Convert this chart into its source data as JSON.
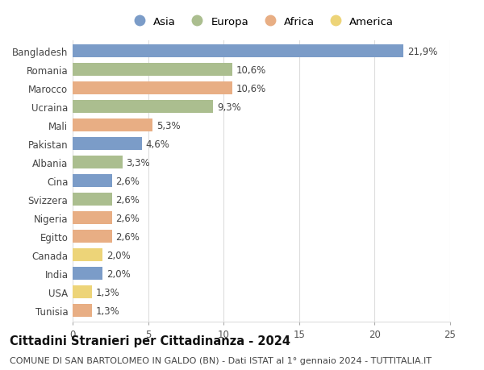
{
  "countries": [
    "Bangladesh",
    "Romania",
    "Marocco",
    "Ucraina",
    "Mali",
    "Pakistan",
    "Albania",
    "Cina",
    "Svizzera",
    "Nigeria",
    "Egitto",
    "Canada",
    "India",
    "USA",
    "Tunisia"
  ],
  "values": [
    21.9,
    10.6,
    10.6,
    9.3,
    5.3,
    4.6,
    3.3,
    2.6,
    2.6,
    2.6,
    2.6,
    2.0,
    2.0,
    1.3,
    1.3
  ],
  "labels": [
    "21,9%",
    "10,6%",
    "10,6%",
    "9,3%",
    "5,3%",
    "4,6%",
    "3,3%",
    "2,6%",
    "2,6%",
    "2,6%",
    "2,6%",
    "2,0%",
    "2,0%",
    "1,3%",
    "1,3%"
  ],
  "continents": [
    "Asia",
    "Europa",
    "Africa",
    "Europa",
    "Africa",
    "Asia",
    "Europa",
    "Asia",
    "Europa",
    "Africa",
    "Africa",
    "America",
    "Asia",
    "America",
    "Africa"
  ],
  "continent_colors": {
    "Asia": "#7B9CC8",
    "Europa": "#ABBE8F",
    "Africa": "#E8AE84",
    "America": "#EDD478"
  },
  "legend_order": [
    "Asia",
    "Europa",
    "Africa",
    "America"
  ],
  "title": "Cittadini Stranieri per Cittadinanza - 2024",
  "subtitle": "COMUNE DI SAN BARTOLOMEO IN GALDO (BN) - Dati ISTAT al 1° gennaio 2024 - TUTTITALIA.IT",
  "xlim": [
    0,
    25
  ],
  "xticks": [
    0,
    5,
    10,
    15,
    20,
    25
  ],
  "background_color": "#ffffff",
  "grid_color": "#dddddd",
  "bar_height": 0.7,
  "label_fontsize": 8.5,
  "title_fontsize": 10.5,
  "subtitle_fontsize": 8,
  "tick_fontsize": 8.5,
  "legend_fontsize": 9.5
}
